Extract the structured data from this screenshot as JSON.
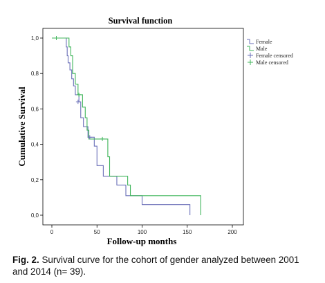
{
  "chart_data": {
    "type": "line",
    "title": "Survival function",
    "xlabel": "Follow-up months",
    "ylabel": "Cumulative Survival",
    "xlim": [
      0,
      200
    ],
    "ylim": [
      0,
      1
    ],
    "xticks": [
      0,
      50,
      100,
      150,
      200
    ],
    "xtick_labels": [
      "0",
      "50",
      "100",
      "150",
      "200"
    ],
    "yticks": [
      0,
      0.2,
      0.4,
      0.6,
      0.8,
      1.0
    ],
    "ytick_labels": [
      "0,0",
      "0,2",
      "0,4",
      "0,6",
      "0,8",
      "1,0"
    ],
    "grid": false,
    "legend_position": "top-right",
    "series": [
      {
        "name": "Female",
        "color": "#6a6fb8",
        "steps": [
          [
            0,
            1.0
          ],
          [
            16,
            0.95
          ],
          [
            17,
            0.9
          ],
          [
            18,
            0.86
          ],
          [
            20,
            0.82
          ],
          [
            22,
            0.77
          ],
          [
            24,
            0.73
          ],
          [
            26,
            0.68
          ],
          [
            30,
            0.64
          ],
          [
            32,
            0.55
          ],
          [
            35,
            0.5
          ],
          [
            40,
            0.44
          ],
          [
            47,
            0.39
          ],
          [
            50,
            0.28
          ],
          [
            57,
            0.22
          ],
          [
            72,
            0.17
          ],
          [
            82,
            0.11
          ],
          [
            100,
            0.06
          ],
          [
            153,
            0.0
          ]
        ]
      },
      {
        "name": "Male",
        "color": "#3fb55a",
        "steps": [
          [
            0,
            1.0
          ],
          [
            19,
            0.95
          ],
          [
            21,
            0.9
          ],
          [
            23,
            0.8
          ],
          [
            26,
            0.74
          ],
          [
            29,
            0.68
          ],
          [
            34,
            0.61
          ],
          [
            37,
            0.55
          ],
          [
            39,
            0.48
          ],
          [
            41,
            0.43
          ],
          [
            62,
            0.33
          ],
          [
            64,
            0.22
          ],
          [
            84,
            0.17
          ],
          [
            87,
            0.11
          ],
          [
            165,
            0.0
          ]
        ]
      }
    ],
    "censored": [
      {
        "name": "Female censored",
        "color": "#6a6fb8",
        "points": [
          [
            29,
            0.64
          ],
          [
            42,
            0.44
          ]
        ]
      },
      {
        "name": "Male censored",
        "color": "#3fb55a",
        "points": [
          [
            5,
            1.0
          ],
          [
            30,
            0.68
          ],
          [
            56,
            0.43
          ]
        ]
      }
    ]
  },
  "caption": {
    "label": "Fig. 2.",
    "text": "Survival curve for the cohort of gender analyzed between 2001 and 2014 (n= 39)."
  }
}
